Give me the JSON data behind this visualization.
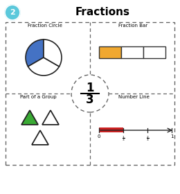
{
  "title": "Fractions",
  "title_fontsize": 11,
  "badge_number": "2",
  "badge_color": "#5bc8db",
  "background_color": "#ffffff",
  "section_labels": [
    "Fraction Circle",
    "Fraction Bar",
    "Part of a Group",
    "Number Line"
  ],
  "fraction_numerator": "1",
  "fraction_denominator": "3",
  "pie_blue": "#4472c4",
  "pie_white": "#ffffff",
  "pie_edge": "#222222",
  "bar_filled_color": "#f0a830",
  "bar_empty_color": "#ffffff",
  "bar_edge_color": "#333333",
  "triangle_green": "#3aaa35",
  "triangle_white": "#ffffff",
  "triangle_edge": "#222222",
  "number_line_red": "#cc2222",
  "number_line_color": "#222222",
  "dashed_color": "#666666"
}
